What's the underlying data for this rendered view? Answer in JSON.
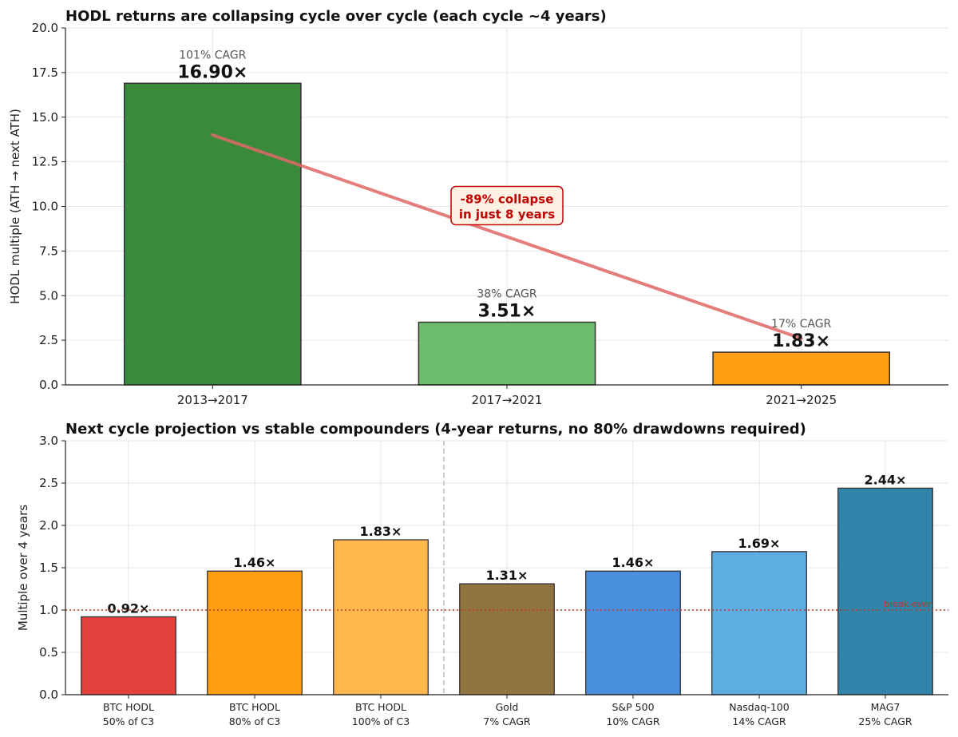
{
  "chart_data": [
    {
      "type": "bar",
      "title": "HODL returns are collapsing cycle over cycle  (each cycle ~4 years)",
      "xlabel": "",
      "ylabel": "HODL multiple (ATH → next ATH)",
      "ylim": [
        0,
        20
      ],
      "yticks": [
        "0.0",
        "2.5",
        "5.0",
        "7.5",
        "10.0",
        "12.5",
        "15.0",
        "17.5",
        "20.0"
      ],
      "ytick_values": [
        0,
        2.5,
        5,
        7.5,
        10,
        12.5,
        15,
        17.5,
        20
      ],
      "grid": true,
      "categories": [
        "2013→2017",
        "2017→2021",
        "2021→2025"
      ],
      "values": [
        16.9,
        3.51,
        1.83
      ],
      "value_labels": [
        "16.90×",
        "3.51×",
        "1.83×"
      ],
      "cagr_labels": [
        "101% CAGR",
        "38% CAGR",
        "17% CAGR"
      ],
      "colors": [
        "#3a8a3c",
        "#6dbd6d",
        "#ff9d13"
      ],
      "trend_line": {
        "from_value": 14.0,
        "to_value": 2.6,
        "color": "#e06666"
      },
      "annotation": {
        "line1": "-89% collapse",
        "line2": "in just 8 years",
        "y": 10.0
      }
    },
    {
      "type": "bar",
      "title": "Next cycle projection vs stable compounders (4-year returns, no 80% drawdowns required)",
      "xlabel": "",
      "ylabel": "Multiple over 4 years",
      "ylim": [
        0,
        3
      ],
      "yticks": [
        "0.0",
        "0.5",
        "1.0",
        "1.5",
        "2.0",
        "2.5",
        "3.0"
      ],
      "ytick_values": [
        0,
        0.5,
        1,
        1.5,
        2,
        2.5,
        3
      ],
      "grid": true,
      "categories": [
        [
          "BTC HODL",
          "50% of C3"
        ],
        [
          "BTC HODL",
          "80% of C3"
        ],
        [
          "BTC HODL",
          "100% of C3"
        ],
        [
          "Gold",
          "7% CAGR"
        ],
        [
          "S&P 500",
          "10% CAGR"
        ],
        [
          "Nasdaq-100",
          "14% CAGR"
        ],
        [
          "MAG7",
          "25% CAGR"
        ]
      ],
      "values": [
        0.92,
        1.46,
        1.83,
        1.31,
        1.46,
        1.69,
        2.44
      ],
      "value_labels": [
        "0.92×",
        "1.46×",
        "1.83×",
        "1.31×",
        "1.46×",
        "1.69×",
        "2.44×"
      ],
      "colors": [
        "#e4413d",
        "#ff9d13",
        "#ffb84d",
        "#8f7440",
        "#4a8ede",
        "#5dade2",
        "#3083a9"
      ],
      "breakeven": {
        "value": 1.0,
        "label": "break-even",
        "color": "#c0392b"
      },
      "separator_after_index": 2
    }
  ]
}
